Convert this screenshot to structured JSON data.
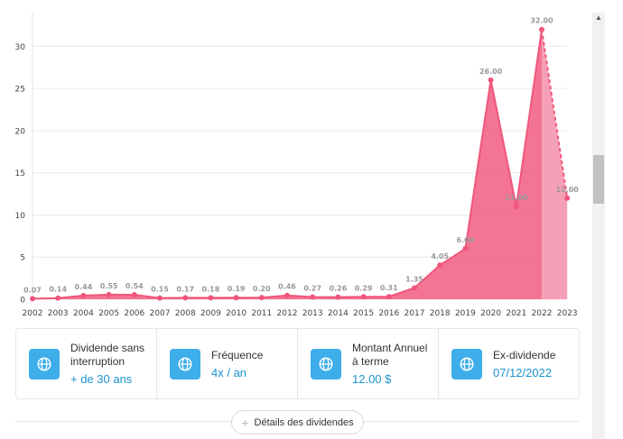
{
  "chart_data": {
    "type": "area",
    "categories": [
      "2002",
      "2003",
      "2004",
      "2005",
      "2006",
      "2007",
      "2008",
      "2009",
      "2010",
      "2011",
      "2012",
      "2013",
      "2014",
      "2015",
      "2016",
      "2017",
      "2018",
      "2019",
      "2020",
      "2021",
      "2022",
      "2023"
    ],
    "values": [
      0.07,
      0.14,
      0.44,
      0.55,
      0.54,
      0.15,
      0.17,
      0.18,
      0.19,
      0.2,
      0.46,
      0.27,
      0.26,
      0.29,
      0.31,
      1.35,
      4.05,
      6.0,
      26.0,
      11.0,
      32.0,
      12.0
    ],
    "labels": [
      "0.07",
      "0.14",
      "0.44",
      "0.55",
      "0.54",
      "0.15",
      "0.17",
      "0.18",
      "0.19",
      "0.20",
      "0.46",
      "0.27",
      "0.26",
      "0.29",
      "0.31",
      "1.35",
      "4.05",
      "6.00",
      "26.00",
      "11.00",
      "32.00",
      "12.00"
    ],
    "y_ticks": [
      "0",
      "5",
      "10",
      "15",
      "20",
      "25",
      "30"
    ],
    "ylim": [
      0,
      34
    ],
    "projected_from_index": 20,
    "grid": true,
    "color": "#f0567c",
    "projected_color": "#f58fab"
  },
  "stats": [
    {
      "icon": "globe-icon",
      "label": "Dividende sans interruption",
      "value": "+ de 30 ans"
    },
    {
      "icon": "globe-icon",
      "label": "Fréquence",
      "value": "4x / an"
    },
    {
      "icon": "globe-icon",
      "label": "Montant Annuel à terme",
      "value": "12.00 $"
    },
    {
      "icon": "globe-icon",
      "label": "Ex-dividende",
      "value": "07/12/2022"
    }
  ],
  "details_button": {
    "label": "Détails des dividendes",
    "icon": "plus-icon"
  }
}
